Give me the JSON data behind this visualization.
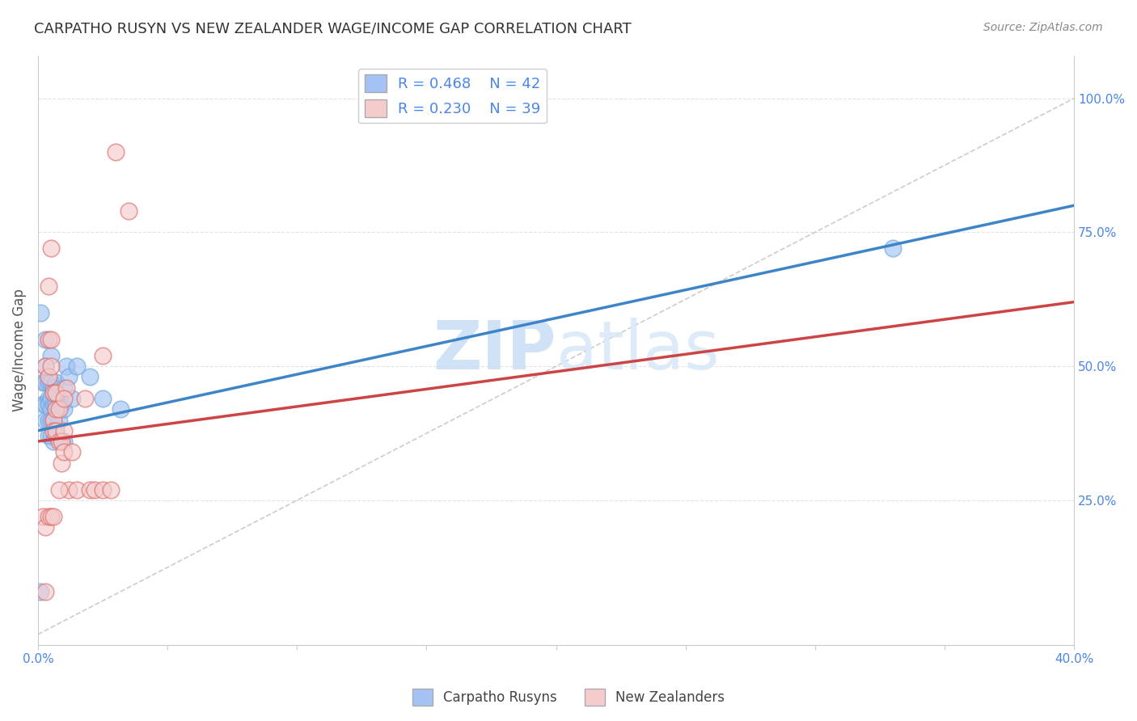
{
  "title": "CARPATHO RUSYN VS NEW ZEALANDER WAGE/INCOME GAP CORRELATION CHART",
  "source": "Source: ZipAtlas.com",
  "ylabel": "Wage/Income Gap",
  "watermark_zip": "ZIP",
  "watermark_atlas": "atlas",
  "xlim": [
    0.0,
    0.4
  ],
  "ylim": [
    -0.02,
    1.08
  ],
  "xticks": [
    0.0,
    0.05,
    0.1,
    0.15,
    0.2,
    0.25,
    0.3,
    0.35,
    0.4
  ],
  "xticklabels": [
    "0.0%",
    "",
    "",
    "",
    "",
    "",
    "",
    "",
    "40.0%"
  ],
  "yticks_right": [
    0.25,
    0.5,
    0.75,
    1.0
  ],
  "ytickslabels_right": [
    "25.0%",
    "50.0%",
    "75.0%",
    "100.0%"
  ],
  "blue_color": "#6fa8dc",
  "pink_color": "#e07070",
  "blue_fill": "#a4c2f4",
  "pink_fill": "#f4cccc",
  "legend_blue_r": "R = 0.468",
  "legend_blue_n": "N = 42",
  "legend_pink_r": "R = 0.230",
  "legend_pink_n": "N = 39",
  "blue_scatter_x": [
    0.001,
    0.001,
    0.002,
    0.002,
    0.003,
    0.003,
    0.003,
    0.003,
    0.004,
    0.004,
    0.004,
    0.004,
    0.004,
    0.005,
    0.005,
    0.005,
    0.005,
    0.005,
    0.005,
    0.006,
    0.006,
    0.006,
    0.006,
    0.007,
    0.007,
    0.007,
    0.008,
    0.008,
    0.009,
    0.009,
    0.01,
    0.01,
    0.01,
    0.011,
    0.012,
    0.013,
    0.015,
    0.02,
    0.025,
    0.032,
    0.33,
    0.003
  ],
  "blue_scatter_y": [
    0.6,
    0.08,
    0.47,
    0.43,
    0.5,
    0.47,
    0.43,
    0.4,
    0.47,
    0.44,
    0.43,
    0.4,
    0.37,
    0.52,
    0.47,
    0.44,
    0.42,
    0.4,
    0.37,
    0.46,
    0.43,
    0.4,
    0.36,
    0.47,
    0.43,
    0.37,
    0.44,
    0.4,
    0.43,
    0.36,
    0.46,
    0.42,
    0.36,
    0.5,
    0.48,
    0.44,
    0.5,
    0.48,
    0.44,
    0.42,
    0.72,
    0.55
  ],
  "pink_scatter_x": [
    0.002,
    0.003,
    0.004,
    0.004,
    0.005,
    0.005,
    0.006,
    0.006,
    0.006,
    0.007,
    0.007,
    0.007,
    0.008,
    0.008,
    0.009,
    0.009,
    0.01,
    0.01,
    0.011,
    0.012,
    0.013,
    0.015,
    0.018,
    0.02,
    0.022,
    0.025,
    0.028,
    0.03,
    0.035,
    0.005,
    0.004,
    0.003,
    0.004,
    0.005,
    0.006,
    0.008,
    0.01,
    0.025,
    0.003
  ],
  "pink_scatter_y": [
    0.22,
    0.5,
    0.55,
    0.48,
    0.55,
    0.5,
    0.45,
    0.4,
    0.38,
    0.45,
    0.42,
    0.38,
    0.42,
    0.36,
    0.36,
    0.32,
    0.38,
    0.34,
    0.46,
    0.27,
    0.34,
    0.27,
    0.44,
    0.27,
    0.27,
    0.27,
    0.27,
    0.9,
    0.79,
    0.72,
    0.65,
    0.2,
    0.22,
    0.22,
    0.22,
    0.27,
    0.44,
    0.52,
    0.08
  ],
  "blue_line_x": [
    0.0,
    0.4
  ],
  "blue_line_y": [
    0.38,
    0.8
  ],
  "pink_line_x": [
    0.0,
    0.4
  ],
  "pink_line_y": [
    0.36,
    0.62
  ],
  "ref_line_x": [
    0.0,
    0.4
  ],
  "ref_line_y": [
    0.0,
    1.0
  ],
  "title_fontsize": 13,
  "tick_label_color": "#4a86e8",
  "legend_text_color": "#4a86e8",
  "background_color": "#ffffff",
  "grid_color": "#dddddd"
}
